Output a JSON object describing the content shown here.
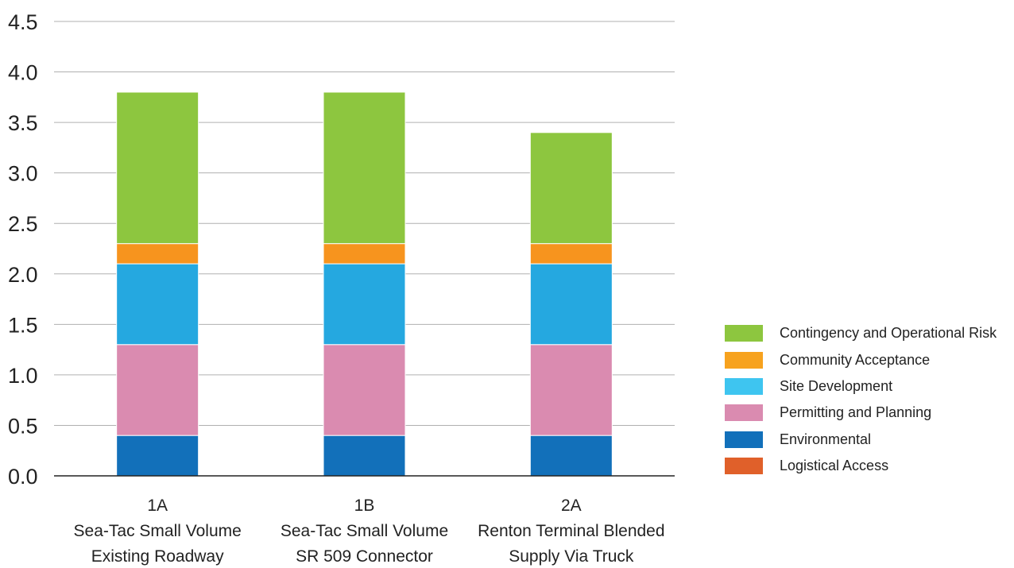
{
  "chart_data": {
    "type": "bar",
    "stacked": true,
    "title": "",
    "xlabel": "",
    "ylabel": "",
    "ylim": [
      0,
      4.5
    ],
    "yticks": [
      "0.0",
      "0.5",
      "1.0",
      "1.5",
      "2.0",
      "2.5",
      "3.0",
      "3.5",
      "4.0",
      "4.5"
    ],
    "grid": true,
    "legend_position": "right",
    "categories": [
      {
        "code": "1A",
        "line1": "Sea-Tac Small Volume",
        "line2": "Existing Roadway"
      },
      {
        "code": "1B",
        "line1": "Sea-Tac Small Volume",
        "line2": "SR 509 Connector"
      },
      {
        "code": "2A",
        "line1": "Renton Terminal Blended",
        "line2": "Supply Via Truck"
      }
    ],
    "series": [
      {
        "name": "Logistical Access",
        "color": "#E0602A",
        "values": [
          0,
          0,
          0
        ]
      },
      {
        "name": "Environmental",
        "color": "#1270BA",
        "values": [
          0.4,
          0.4,
          0.4
        ]
      },
      {
        "name": "Permitting and Planning",
        "color": "#DA8BB0",
        "values": [
          0.9,
          0.9,
          0.9
        ]
      },
      {
        "name": "Site Development",
        "color": "#25A8E0",
        "values": [
          0.8,
          0.8,
          0.8
        ]
      },
      {
        "name": "Community Acceptance",
        "color": "#F7941E",
        "values": [
          0.2,
          0.2,
          0.2
        ]
      },
      {
        "name": "Contingency and Operational Risk",
        "color": "#8DC63F",
        "values": [
          1.5,
          1.5,
          1.1
        ]
      }
    ],
    "legend_order": [
      "Contingency and Operational Risk",
      "Community Acceptance",
      "Site Development",
      "Permitting and Planning",
      "Environmental",
      "Logistical Access"
    ],
    "legend_colors": {
      "Contingency and Operational Risk": "#8DC63F",
      "Community Acceptance": "#F7A21E",
      "Site Development": "#3EC5F0",
      "Permitting and Planning": "#DA8BB0",
      "Environmental": "#1270BA",
      "Logistical Access": "#E0602A"
    }
  }
}
